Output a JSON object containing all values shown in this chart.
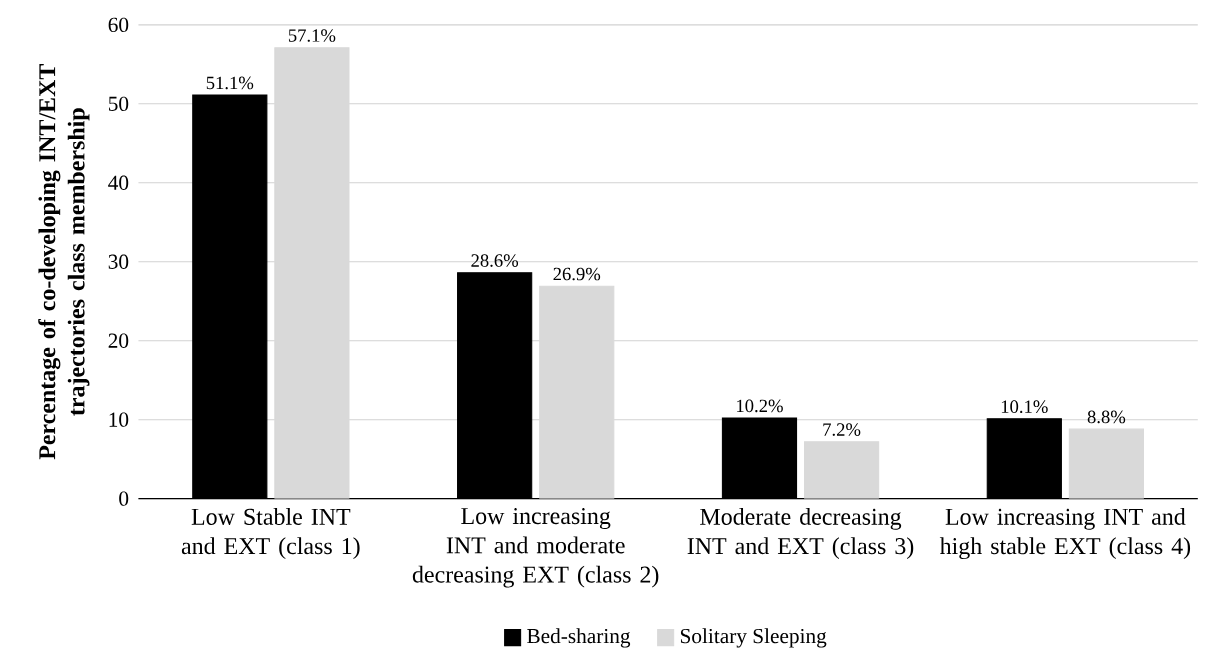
{
  "chart_data": {
    "type": "bar",
    "ylabel": "Percentage of co-developing INT/EXT trajectories class membership",
    "categories": [
      "Low Stable INT and EXT (class 1)",
      "Low increasing INT and moderate decreasing EXT (class 2)",
      "Moderate decreasing INT and EXT (class 3)",
      "Low increasing INT and high stable EXT (class 4)"
    ],
    "series": [
      {
        "name": "Bed-sharing",
        "color": "#000000",
        "values": [
          51.1,
          28.6,
          10.2,
          10.1
        ],
        "value_labels": [
          "51.1%",
          "28.6%",
          "10.2%",
          "10.1%"
        ]
      },
      {
        "name": "Solitary Sleeping",
        "color": "#d9d9d9",
        "values": [
          57.1,
          26.9,
          7.2,
          8.8
        ],
        "value_labels": [
          "57.1%",
          "26.9%",
          "7.2%",
          "8.8%"
        ]
      }
    ],
    "ylim": [
      0,
      60
    ],
    "yticks": [
      0,
      10,
      20,
      30,
      40,
      50,
      60
    ],
    "grid": "y",
    "legend": "bottom"
  }
}
